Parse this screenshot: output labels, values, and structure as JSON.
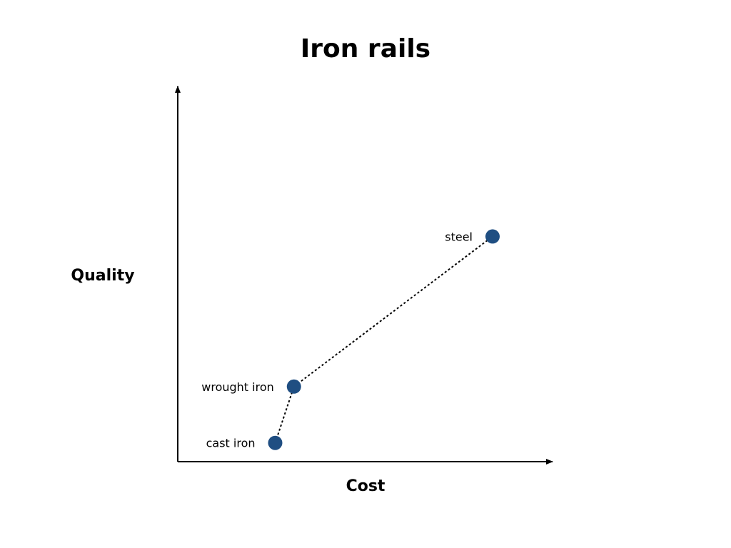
{
  "chart_data": {
    "type": "scatter",
    "title": "Iron rails",
    "xlabel": "Cost",
    "ylabel": "Quality",
    "grid": false,
    "legend": "none",
    "xlim": [
      0,
      100
    ],
    "ylim": [
      0,
      100
    ],
    "connect_points": "dotted",
    "point_color": "#1f4e82",
    "points": [
      {
        "label": "cast iron",
        "x": 26,
        "y": 5
      },
      {
        "label": "wrought iron",
        "x": 31,
        "y": 20
      },
      {
        "label": "steel",
        "x": 84,
        "y": 60
      }
    ]
  }
}
